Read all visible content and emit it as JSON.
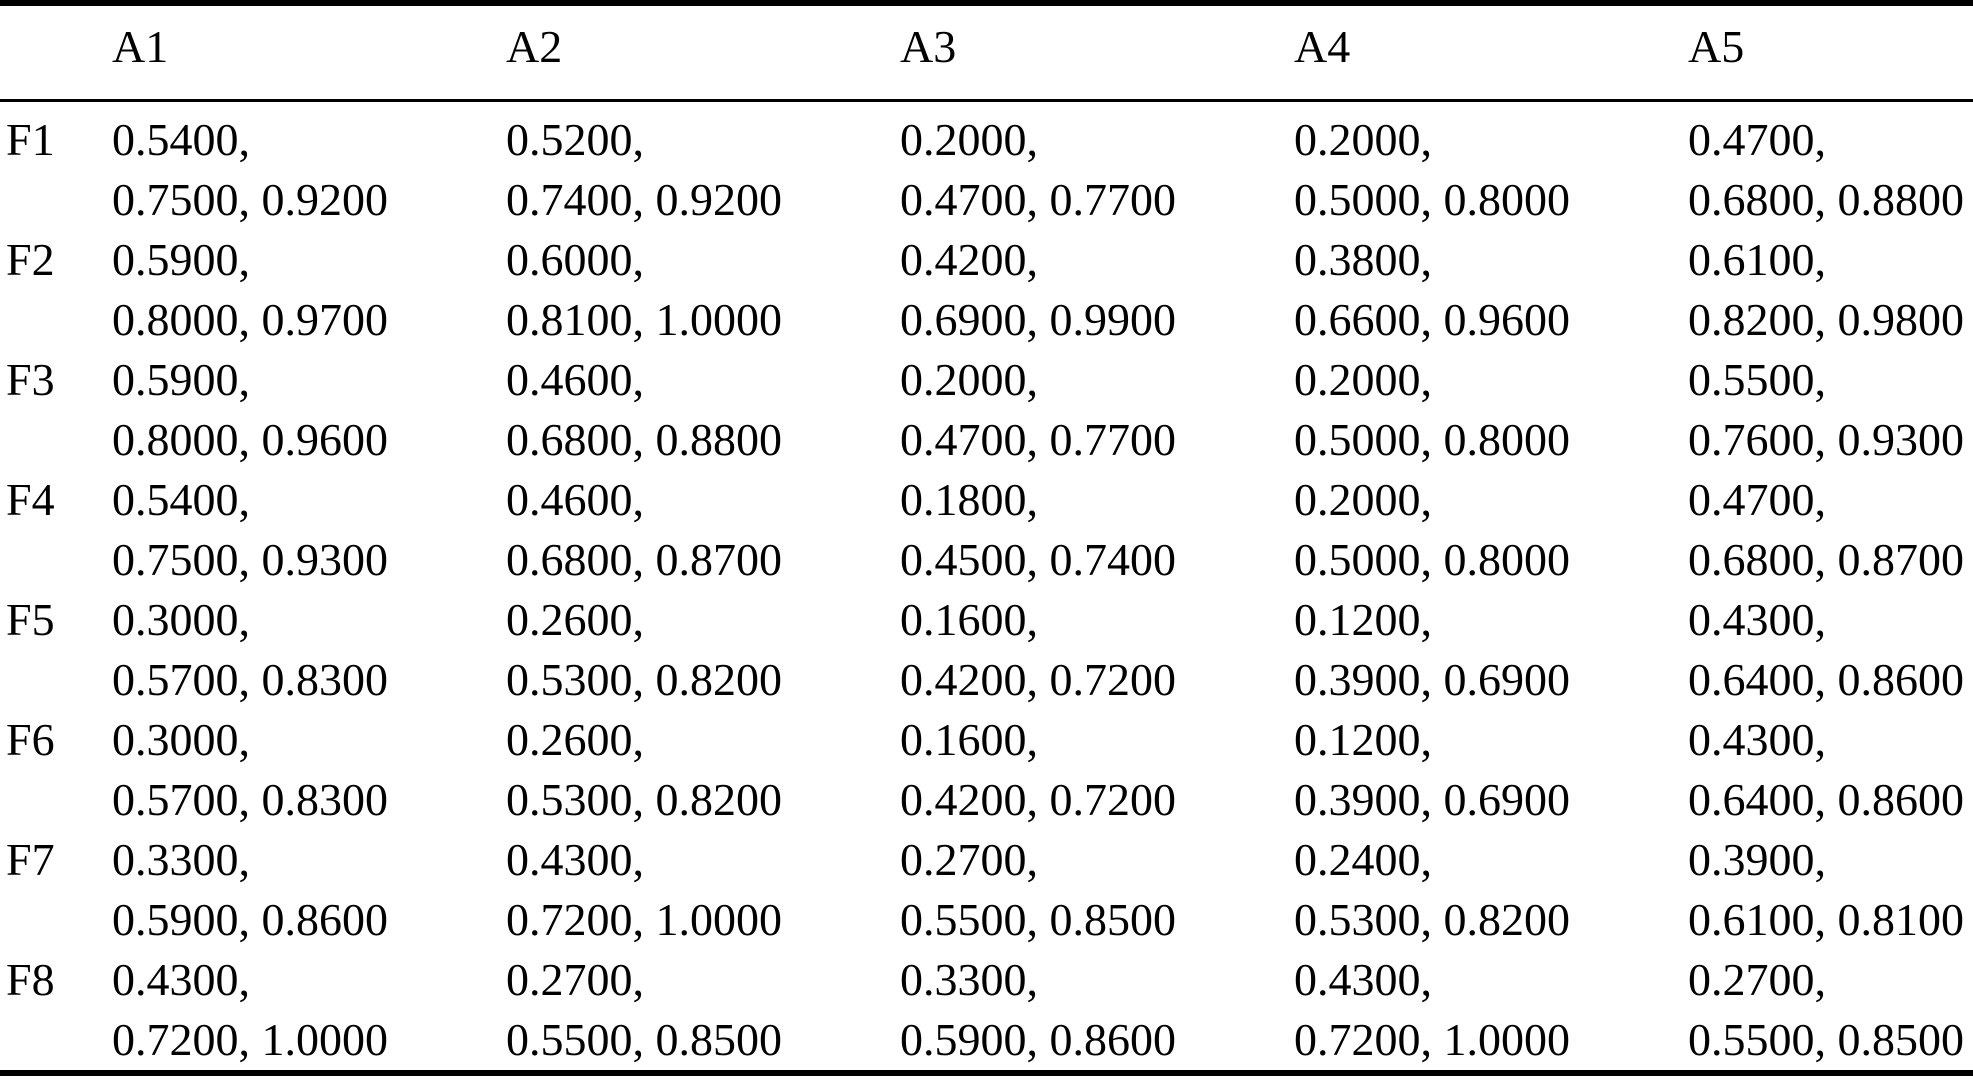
{
  "table": {
    "corner_label": "",
    "columns": [
      "A1",
      "A2",
      "A3",
      "A4",
      "A5"
    ],
    "rows": [
      {
        "label": "F1",
        "cells": [
          [
            "0.5400",
            "0.7500",
            "0.9200"
          ],
          [
            "0.5200",
            "0.7400",
            "0.9200"
          ],
          [
            "0.2000",
            "0.4700",
            "0.7700"
          ],
          [
            "0.2000",
            "0.5000",
            "0.8000"
          ],
          [
            "0.4700",
            "0.6800",
            "0.8800"
          ]
        ]
      },
      {
        "label": "F2",
        "cells": [
          [
            "0.5900",
            "0.8000",
            "0.9700"
          ],
          [
            "0.6000",
            "0.8100",
            "1.0000"
          ],
          [
            "0.4200",
            "0.6900",
            "0.9900"
          ],
          [
            "0.3800",
            "0.6600",
            "0.9600"
          ],
          [
            "0.6100",
            "0.8200",
            "0.9800"
          ]
        ]
      },
      {
        "label": "F3",
        "cells": [
          [
            "0.5900",
            "0.8000",
            "0.9600"
          ],
          [
            "0.4600",
            "0.6800",
            "0.8800"
          ],
          [
            "0.2000",
            "0.4700",
            "0.7700"
          ],
          [
            "0.2000",
            "0.5000",
            "0.8000"
          ],
          [
            "0.5500",
            "0.7600",
            "0.9300"
          ]
        ]
      },
      {
        "label": "F4",
        "cells": [
          [
            "0.5400",
            "0.7500",
            "0.9300"
          ],
          [
            "0.4600",
            "0.6800",
            "0.8700"
          ],
          [
            "0.1800",
            "0.4500",
            "0.7400"
          ],
          [
            "0.2000",
            "0.5000",
            "0.8000"
          ],
          [
            "0.4700",
            "0.6800",
            "0.8700"
          ]
        ]
      },
      {
        "label": "F5",
        "cells": [
          [
            "0.3000",
            "0.5700",
            "0.8300"
          ],
          [
            "0.2600",
            "0.5300",
            "0.8200"
          ],
          [
            "0.1600",
            "0.4200",
            "0.7200"
          ],
          [
            "0.1200",
            "0.3900",
            "0.6900"
          ],
          [
            "0.4300",
            "0.6400",
            "0.8600"
          ]
        ]
      },
      {
        "label": "F6",
        "cells": [
          [
            "0.3000",
            "0.5700",
            "0.8300"
          ],
          [
            "0.2600",
            "0.5300",
            "0.8200"
          ],
          [
            "0.1600",
            "0.4200",
            "0.7200"
          ],
          [
            "0.1200",
            "0.3900",
            "0.6900"
          ],
          [
            "0.4300",
            "0.6400",
            "0.8600"
          ]
        ]
      },
      {
        "label": "F7",
        "cells": [
          [
            "0.3300",
            "0.5900",
            "0.8600"
          ],
          [
            "0.4300",
            "0.7200",
            "1.0000"
          ],
          [
            "0.2700",
            "0.5500",
            "0.8500"
          ],
          [
            "0.2400",
            "0.5300",
            "0.8200"
          ],
          [
            "0.3900",
            "0.6100",
            "0.8100"
          ]
        ]
      },
      {
        "label": "F8",
        "cells": [
          [
            "0.4300",
            "0.7200",
            "1.0000"
          ],
          [
            "0.2700",
            "0.5500",
            "0.8500"
          ],
          [
            "0.3300",
            "0.5900",
            "0.8600"
          ],
          [
            "0.4300",
            "0.7200",
            "1.0000"
          ],
          [
            "0.2700",
            "0.5500",
            "0.8500"
          ]
        ]
      }
    ]
  },
  "chart_data": {
    "type": "table",
    "title": "",
    "columns": [
      "",
      "A1",
      "A2",
      "A3",
      "A4",
      "A5"
    ],
    "rows": [
      [
        "F1",
        "0.5400, 0.7500, 0.9200",
        "0.5200, 0.7400, 0.9200",
        "0.2000, 0.4700, 0.7700",
        "0.2000, 0.5000, 0.8000",
        "0.4700, 0.6800, 0.8800"
      ],
      [
        "F2",
        "0.5900, 0.8000, 0.9700",
        "0.6000, 0.8100, 1.0000",
        "0.4200, 0.6900, 0.9900",
        "0.3800, 0.6600, 0.9600",
        "0.6100, 0.8200, 0.9800"
      ],
      [
        "F3",
        "0.5900, 0.8000, 0.9600",
        "0.4600, 0.6800, 0.8800",
        "0.2000, 0.4700, 0.7700",
        "0.2000, 0.5000, 0.8000",
        "0.5500, 0.7600, 0.9300"
      ],
      [
        "F4",
        "0.5400, 0.7500, 0.9300",
        "0.4600, 0.6800, 0.8700",
        "0.1800, 0.4500, 0.7400",
        "0.2000, 0.5000, 0.8000",
        "0.4700, 0.6800, 0.8700"
      ],
      [
        "F5",
        "0.3000, 0.5700, 0.8300",
        "0.2600, 0.5300, 0.8200",
        "0.1600, 0.4200, 0.7200",
        "0.1200, 0.3900, 0.6900",
        "0.4300, 0.6400, 0.8600"
      ],
      [
        "F6",
        "0.3000, 0.5700, 0.8300",
        "0.2600, 0.5300, 0.8200",
        "0.1600, 0.4200, 0.7200",
        "0.1200, 0.3900, 0.6900",
        "0.4300, 0.6400, 0.8600"
      ],
      [
        "F7",
        "0.3300, 0.5900, 0.8600",
        "0.4300, 0.7200, 1.0000",
        "0.2700, 0.5500, 0.8500",
        "0.2400, 0.5300, 0.8200",
        "0.3900, 0.6100, 0.8100"
      ],
      [
        "F8",
        "0.4300, 0.7200, 1.0000",
        "0.2700, 0.5500, 0.8500",
        "0.3300, 0.5900, 0.8600",
        "0.4300, 0.7200, 1.0000",
        "0.2700, 0.5500, 0.8500"
      ]
    ]
  }
}
